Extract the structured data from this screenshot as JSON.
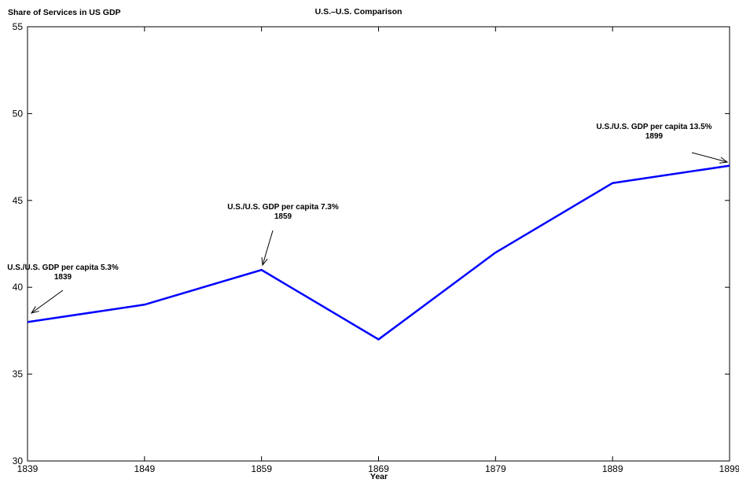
{
  "chart_data": {
    "type": "line",
    "title": "U.S.–U.S. Comparison",
    "ylabel": "Share of Services in US GDP",
    "xlabel": "Year",
    "x": [
      1839,
      1849,
      1859,
      1869,
      1879,
      1889,
      1899
    ],
    "series": [
      {
        "values": [
          38,
          39,
          41,
          37,
          42,
          46,
          47
        ],
        "color": "#0000ff"
      }
    ],
    "xlim": [
      1839,
      1899
    ],
    "ylim": [
      30,
      55
    ],
    "xticks": [
      "1839",
      "1849",
      "1859",
      "1869",
      "1879",
      "1889",
      "1899"
    ],
    "yticks": [
      "30",
      "35",
      "40",
      "45",
      "50",
      "55"
    ],
    "grid": false,
    "annotations": [
      {
        "label": "U.S./U.S. GDP per capita 5.3%",
        "year_label": "1839",
        "x": 1839,
        "y": 38
      },
      {
        "label": "U.S./U.S. GDP per capita 7.3%",
        "year_label": "1859",
        "x": 1859,
        "y": 41
      },
      {
        "label": "U.S./U.S. GDP per capita 13.5%",
        "year_label": "1899",
        "x": 1899,
        "y": 47
      }
    ]
  }
}
